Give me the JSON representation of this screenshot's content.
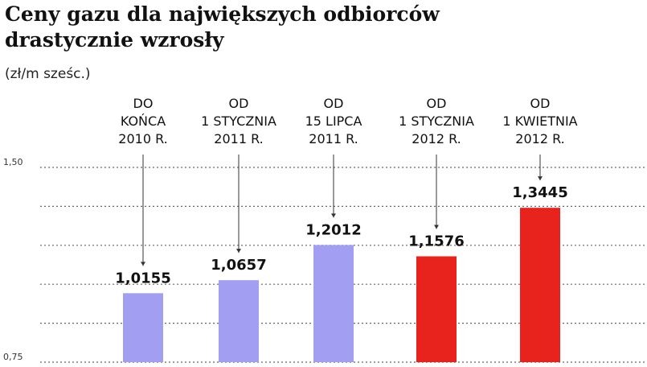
{
  "chart_data": {
    "type": "bar",
    "title": "Ceny gazu dla największych odbiorców drastycznie wzrosły",
    "subtitle": "(zł/m sześc.)",
    "categories": [
      "DO\nKOŃCA\n2010 R.",
      "OD\n1 STYCZNIA\n2011 R.",
      "OD\n15 LIPCA\n2011 R.",
      "OD\n1 STYCZNIA\n2012 R.",
      "OD\n1 KWIETNIA\n2012 R."
    ],
    "values": [
      1.0155,
      1.0657,
      1.2012,
      1.1576,
      1.3445
    ],
    "value_labels": [
      "1,0155",
      "1,0657",
      "1,2012",
      "1,1576",
      "1,3445"
    ],
    "colors": [
      "#a29ef2",
      "#a29ef2",
      "#a29ef2",
      "#e8231e",
      "#e8231e"
    ],
    "ylim": [
      0.75,
      1.5
    ],
    "yticks": [
      {
        "value": 0.75,
        "label": "0,75"
      },
      {
        "value": 1.5,
        "label": "1,50"
      }
    ],
    "gridlines": [
      0.9,
      1.05,
      1.2,
      1.35
    ],
    "grid": true
  }
}
